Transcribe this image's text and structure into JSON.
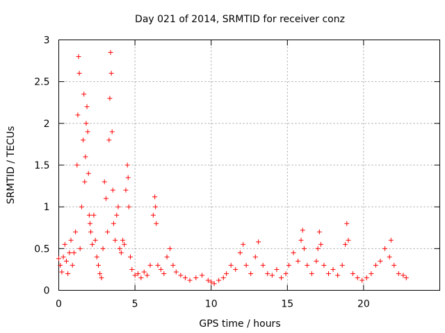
{
  "chart_data": {
    "type": "scatter",
    "title": "Day 021 of 2014, SRMTID for receiver conz",
    "xlabel": "GPS time / hours",
    "ylabel": "SRMTID / TECUs",
    "xlim": [
      0,
      25
    ],
    "ylim": [
      0,
      3
    ],
    "xticks": [
      0,
      5,
      10,
      15,
      20
    ],
    "xtick_labels": [
      "0",
      "5",
      "10",
      "15",
      "20"
    ],
    "yticks": [
      0,
      0.5,
      1,
      1.5,
      2,
      2.5,
      3
    ],
    "ytick_labels": [
      "0",
      "0.5",
      "1",
      "1.5",
      "2",
      "2.5",
      "3"
    ],
    "grid": true,
    "marker": "+",
    "color": "#ff0000",
    "series": [
      {
        "name": "SRMTID",
        "x": [
          0.0,
          0.1,
          0.2,
          0.3,
          0.4,
          0.5,
          0.6,
          0.7,
          0.8,
          0.9,
          1.0,
          1.1,
          1.2,
          1.25,
          1.3,
          1.35,
          1.4,
          1.5,
          1.6,
          1.65,
          1.7,
          1.75,
          1.8,
          1.85,
          1.9,
          1.95,
          2.0,
          2.05,
          2.1,
          2.2,
          2.3,
          2.4,
          2.5,
          2.6,
          2.7,
          2.8,
          2.9,
          3.0,
          3.1,
          3.2,
          3.3,
          3.35,
          3.4,
          3.45,
          3.5,
          3.55,
          3.6,
          3.7,
          3.8,
          3.9,
          4.0,
          4.1,
          4.2,
          4.3,
          4.4,
          4.5,
          4.55,
          4.6,
          4.7,
          4.8,
          5.0,
          5.2,
          5.4,
          5.6,
          5.8,
          6.0,
          6.2,
          6.3,
          6.35,
          6.4,
          6.5,
          6.7,
          6.9,
          7.1,
          7.3,
          7.5,
          7.7,
          8.0,
          8.3,
          8.6,
          9.0,
          9.4,
          9.8,
          10.0,
          10.2,
          10.5,
          10.8,
          11.0,
          11.3,
          11.6,
          11.9,
          12.1,
          12.3,
          12.6,
          12.9,
          13.1,
          13.4,
          13.7,
          14.0,
          14.3,
          14.6,
          14.9,
          15.1,
          15.4,
          15.7,
          15.9,
          16.0,
          16.1,
          16.3,
          16.6,
          16.9,
          17.0,
          17.1,
          17.2,
          17.4,
          17.7,
          18.0,
          18.3,
          18.6,
          18.8,
          18.9,
          19.0,
          19.3,
          19.6,
          19.9,
          20.2,
          20.5,
          20.8,
          21.1,
          21.4,
          21.7,
          21.8,
          22.0,
          22.3,
          22.6,
          22.8
        ],
        "y": [
          0.38,
          0.3,
          0.22,
          0.4,
          0.55,
          0.35,
          0.2,
          0.45,
          0.6,
          0.3,
          0.45,
          0.7,
          1.5,
          2.1,
          2.8,
          2.6,
          0.5,
          1.0,
          1.8,
          2.35,
          1.3,
          1.6,
          2.0,
          2.2,
          1.9,
          1.4,
          0.9,
          0.8,
          0.7,
          0.55,
          0.9,
          0.6,
          0.4,
          0.3,
          0.2,
          0.15,
          0.5,
          1.3,
          1.1,
          0.7,
          1.8,
          2.3,
          2.85,
          2.6,
          1.9,
          1.2,
          0.8,
          0.6,
          0.9,
          1.0,
          0.5,
          0.45,
          0.6,
          0.55,
          1.2,
          1.5,
          1.35,
          1.0,
          0.4,
          0.25,
          0.18,
          0.2,
          0.15,
          0.22,
          0.18,
          0.3,
          0.9,
          1.12,
          1.0,
          0.8,
          0.3,
          0.25,
          0.2,
          0.4,
          0.5,
          0.3,
          0.22,
          0.18,
          0.15,
          0.12,
          0.15,
          0.18,
          0.12,
          0.1,
          0.08,
          0.12,
          0.15,
          0.2,
          0.3,
          0.25,
          0.45,
          0.55,
          0.3,
          0.2,
          0.4,
          0.58,
          0.3,
          0.2,
          0.18,
          0.25,
          0.15,
          0.2,
          0.3,
          0.45,
          0.35,
          0.6,
          0.72,
          0.5,
          0.3,
          0.2,
          0.35,
          0.5,
          0.7,
          0.55,
          0.3,
          0.2,
          0.25,
          0.18,
          0.3,
          0.55,
          0.8,
          0.6,
          0.2,
          0.15,
          0.12,
          0.15,
          0.2,
          0.3,
          0.35,
          0.5,
          0.4,
          0.6,
          0.3,
          0.2,
          0.18,
          0.15
        ]
      }
    ]
  }
}
